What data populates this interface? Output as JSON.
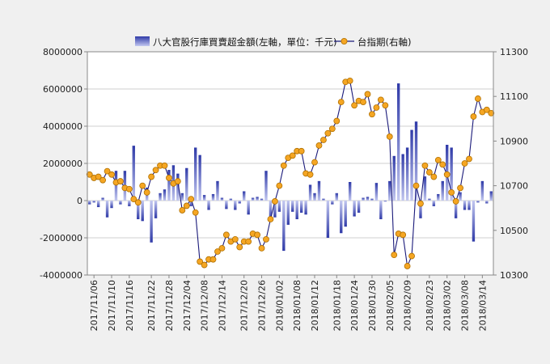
{
  "chart_data": {
    "type": "bar+line",
    "legend": {
      "position": "top-center",
      "entries": [
        "八大官股行庫買賣超金額(左軸，單位：千元)",
        "台指期(右軸)"
      ]
    },
    "left_axis": {
      "ylim": [
        -4000000,
        8000000
      ],
      "ticks": [
        -4000000,
        -2000000,
        0,
        2000000,
        4000000,
        6000000,
        8000000
      ],
      "tick_labels": [
        "-4000000",
        "-2000000",
        "0",
        "2000000",
        "4000000",
        "6000000",
        "8000000"
      ]
    },
    "right_axis": {
      "ylim": [
        10300,
        11300
      ],
      "ticks": [
        10300,
        10500,
        10700,
        10900,
        11100,
        11300
      ],
      "tick_labels": [
        "10300",
        "10500",
        "10700",
        "10900",
        "11100",
        "11300"
      ]
    },
    "x_tick_labels": [
      "2017/11/06",
      "2017/11/10",
      "2017/11/16",
      "2017/11/22",
      "2017/11/28",
      "2017/12/04",
      "2017/12/08",
      "2017/12/14",
      "2017/12/20",
      "2017/12/26",
      "2018/01/02",
      "2018/01/08",
      "2018/01/12",
      "2018/01/18",
      "2018/01/24",
      "2018/01/30",
      "2018/02/05",
      "2018/02/09",
      "2018/02/23",
      "2018/03/02",
      "2018/03/08",
      "2018/03/14"
    ],
    "grid": true,
    "colors": {
      "bar_top": "#3a45b0",
      "bar_bottom": "#c8ccf0",
      "line": "#1a1a7a",
      "marker": "#f5a623",
      "marker_edge": "#b07000",
      "axis": "#888888",
      "grid": "#cfcfcf"
    },
    "series": [
      {
        "name": "八大官股行庫買賣超金額(左軸，單位：千元)",
        "axis": "left",
        "type": "bar",
        "values": [
          -200000,
          -100000,
          -350000,
          150000,
          -900000,
          -400000,
          1600000,
          -200000,
          1600000,
          -300000,
          2950000,
          -1000000,
          -1100000,
          700000,
          -2250000,
          -950000,
          400000,
          600000,
          1650000,
          1900000,
          1450000,
          400000,
          1750000,
          -300000,
          2850000,
          2450000,
          300000,
          -500000,
          350000,
          1050000,
          150000,
          -450000,
          100000,
          -500000,
          -150000,
          500000,
          -750000,
          150000,
          200000,
          100000,
          1600000,
          -1050000,
          -900000,
          -600000,
          -2700000,
          -1300000,
          -600000,
          -1000000,
          -650000,
          -750000,
          850000,
          400000,
          1050000,
          100000,
          -2000000,
          -200000,
          400000,
          -1750000,
          -1400000,
          1000000,
          -850000,
          -650000,
          150000,
          200000,
          100000,
          950000,
          -1000000,
          -50000,
          1050000,
          2400000,
          6300000,
          2500000,
          2850000,
          3800000,
          4250000,
          -950000,
          1300000,
          100000,
          -300000,
          350000,
          1050000,
          3000000,
          2850000,
          -950000,
          450000,
          -500000,
          -500000,
          -2200000,
          -100000,
          1050000,
          -150000,
          500000
        ]
      },
      {
        "name": "台指期(右軸)",
        "axis": "right",
        "type": "line",
        "values": [
          10750,
          10735,
          10740,
          10725,
          10765,
          10750,
          10715,
          10720,
          10690,
          10685,
          10640,
          10625,
          10700,
          10670,
          10740,
          10770,
          10790,
          10790,
          10735,
          10710,
          10720,
          10590,
          10610,
          10640,
          10580,
          10360,
          10345,
          10370,
          10370,
          10405,
          10420,
          10480,
          10450,
          10460,
          10425,
          10450,
          10450,
          10485,
          10480,
          10420,
          10460,
          10550,
          10630,
          10700,
          10790,
          10825,
          10835,
          10855,
          10855,
          10755,
          10750,
          10805,
          10880,
          10905,
          10935,
          10955,
          10990,
          11075,
          11165,
          11170,
          11060,
          11080,
          11075,
          11110,
          11020,
          11050,
          11085,
          11060,
          10920,
          10390,
          10485,
          10480,
          10340,
          10385,
          10700,
          10620,
          10790,
          10760,
          10740,
          10815,
          10795,
          10750,
          10670,
          10630,
          10690,
          10800,
          10820,
          11010,
          11090,
          11030,
          11040,
          11025
        ]
      }
    ]
  }
}
